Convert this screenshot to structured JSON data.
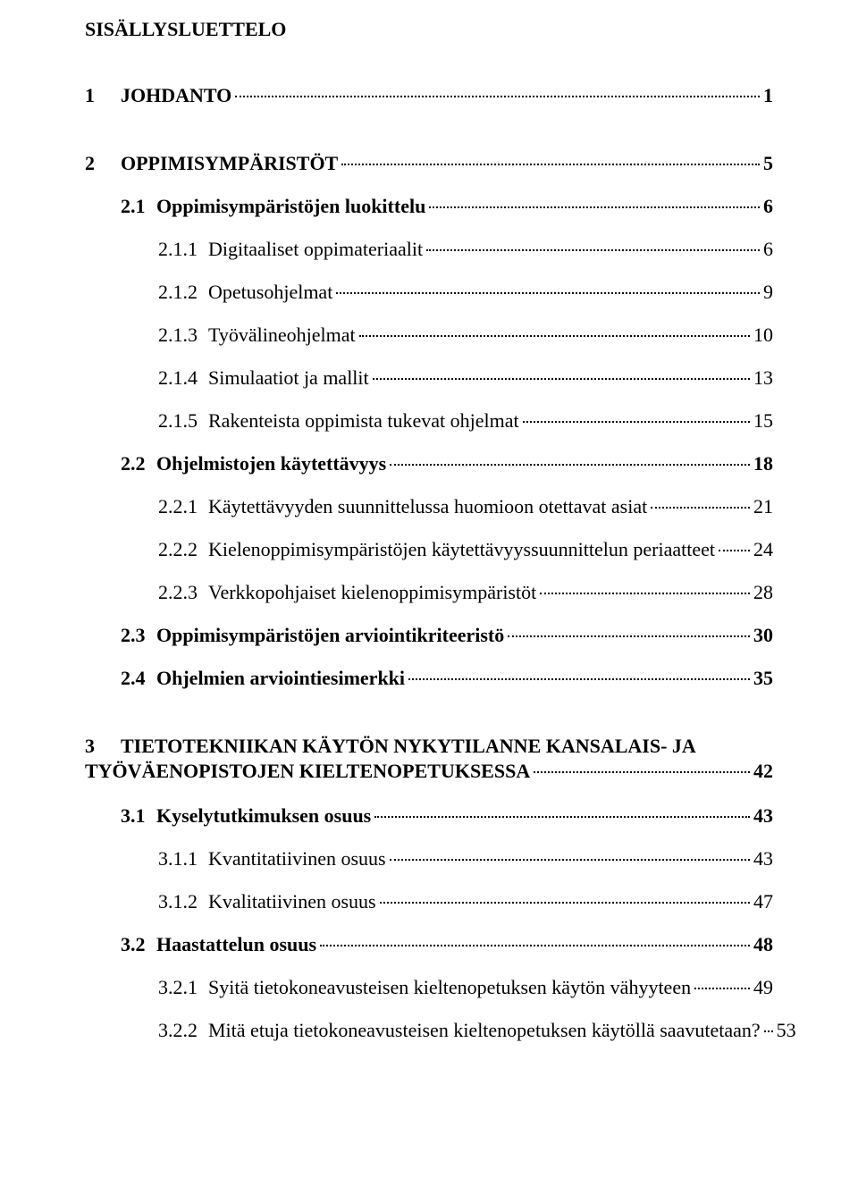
{
  "title": "SISÄLLYSLUETTELO",
  "entries": [
    {
      "level": 1,
      "num": "1",
      "label": "JOHDANTO",
      "page": "1",
      "gap_after": true
    },
    {
      "level": 1,
      "num": "2",
      "label": "OPPIMISYMPÄRISTÖT",
      "page": "5"
    },
    {
      "level": 2,
      "num": "2.1",
      "label": "Oppimisympäristöjen luokittelu",
      "page": "6"
    },
    {
      "level": 3,
      "num": "2.1.1",
      "label": "Digitaaliset oppimateriaalit",
      "page": "6"
    },
    {
      "level": 3,
      "num": "2.1.2",
      "label": "Opetusohjelmat",
      "page": "9"
    },
    {
      "level": 3,
      "num": "2.1.3",
      "label": "Työvälineohjelmat",
      "page": "10"
    },
    {
      "level": 3,
      "num": "2.1.4",
      "label": "Simulaatiot ja mallit",
      "page": "13"
    },
    {
      "level": 3,
      "num": "2.1.5",
      "label": "Rakenteista oppimista tukevat ohjelmat",
      "page": "15"
    },
    {
      "level": 2,
      "num": "2.2",
      "label": "Ohjelmistojen käytettävyys",
      "page": "18"
    },
    {
      "level": 3,
      "num": "2.2.1",
      "label": "Käytettävyyden suunnittelussa huomioon otettavat asiat",
      "page": "21"
    },
    {
      "level": 3,
      "num": "2.2.2",
      "label": "Kielenoppimisympäristöjen käytettävyyssuunnittelun periaatteet",
      "page": "24"
    },
    {
      "level": 3,
      "num": "2.2.3",
      "label": "Verkkopohjaiset kielenoppimisympäristöt",
      "page": "28"
    },
    {
      "level": 2,
      "num": "2.3",
      "label": "Oppimisympäristöjen arviointikriteeristö",
      "page": "30"
    },
    {
      "level": 2,
      "num": "2.4",
      "label": "Ohjelmien arviointiesimerkki",
      "page": "35",
      "gap_after": true
    },
    {
      "level": 1,
      "num": "3",
      "label_line1": "TIETOTEKNIIKAN KÄYTÖN NYKYTILANNE KANSALAIS- JA",
      "label_line2": "TYÖVÄENOPISTOJEN KIELTENOPETUKSESSA",
      "page": "42",
      "wrap": true
    },
    {
      "level": 2,
      "num": "3.1",
      "label": "Kyselytutkimuksen osuus",
      "page": "43"
    },
    {
      "level": 3,
      "num": "3.1.1",
      "label": "Kvantitatiivinen osuus",
      "page": "43"
    },
    {
      "level": 3,
      "num": "3.1.2",
      "label": "Kvalitatiivinen osuus",
      "page": "47"
    },
    {
      "level": 2,
      "num": "3.2",
      "label": "Haastattelun osuus",
      "page": "48"
    },
    {
      "level": 3,
      "num": "3.2.1",
      "label": "Syitä tietokoneavusteisen kieltenopetuksen käytön vähyyteen",
      "page": "49"
    },
    {
      "level": 3,
      "num": "3.2.2",
      "label": "Mitä etuja tietokoneavusteisen kieltenopetuksen käytöllä saavutetaan?",
      "page": "53"
    }
  ],
  "colors": {
    "text": "#000000",
    "background": "#ffffff"
  },
  "fonts": {
    "family": "Times New Roman",
    "title_size_pt": 17,
    "entry_size_pt": 17
  }
}
